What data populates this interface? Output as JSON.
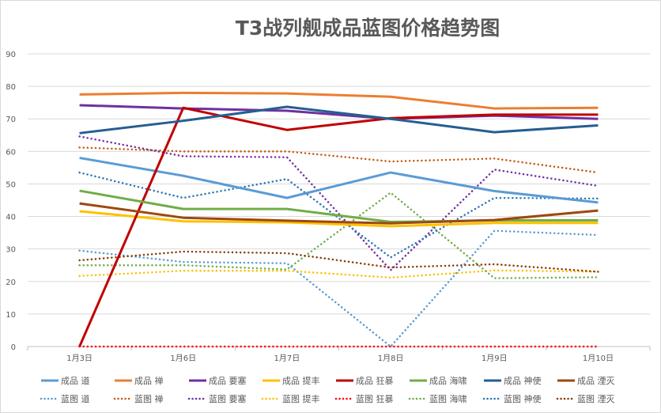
{
  "chart_data": {
    "type": "line",
    "title": "T3战列舰成品蓝图价格趋势图",
    "xlabel": "",
    "ylabel": "",
    "categories": [
      "1月3日",
      "1月6日",
      "1月7日",
      "1月8日",
      "1月9日",
      "1月10日"
    ],
    "ylim": [
      0,
      90
    ],
    "yticks": [
      "0",
      "10",
      "20",
      "30",
      "40",
      "50",
      "60",
      "70",
      "80",
      "90"
    ],
    "grid": true,
    "legend_position": "bottom",
    "series": [
      {
        "name": "成品 道",
        "color": "#5b9bd5",
        "dash": "solid",
        "values": [
          58,
          52.5,
          45.7,
          53.5,
          47.8,
          44.3
        ]
      },
      {
        "name": "成品 禅",
        "color": "#ed7d31",
        "dash": "solid",
        "values": [
          77.5,
          78,
          77.8,
          76.8,
          73.2,
          73.4
        ]
      },
      {
        "name": "成品 要塞",
        "color": "#7030a0",
        "dash": "solid",
        "values": [
          74.2,
          73.2,
          72.5,
          70,
          71,
          70
        ]
      },
      {
        "name": "成品 提丰",
        "color": "#ffc000",
        "dash": "solid",
        "values": [
          41.6,
          38.5,
          38.2,
          37,
          38,
          38
        ]
      },
      {
        "name": "成品 狂暴",
        "color": "#c00000",
        "dash": "solid",
        "values": [
          0,
          73.4,
          66.6,
          70.2,
          71.3,
          71.3
        ]
      },
      {
        "name": "成品 海啸",
        "color": "#70ad47",
        "dash": "solid",
        "values": [
          47.9,
          42.3,
          42.3,
          38.3,
          38.8,
          38.8
        ]
      },
      {
        "name": "成品 神使",
        "color": "#255e91",
        "dash": "solid",
        "values": [
          65.6,
          69.4,
          73.7,
          70,
          65.9,
          68
        ]
      },
      {
        "name": "成品 湮灭",
        "color": "#9e480e",
        "dash": "solid",
        "values": [
          44,
          39.6,
          38.7,
          37.9,
          38.9,
          41.8
        ]
      },
      {
        "name": "蓝图 道",
        "color": "#5b9bd5",
        "dash": "dot",
        "values": [
          29.5,
          26,
          25.6,
          0,
          35.6,
          34.3
        ]
      },
      {
        "name": "蓝图 禅",
        "color": "#c55a11",
        "dash": "dot",
        "values": [
          61.2,
          60,
          60,
          56.9,
          57.8,
          53.5
        ]
      },
      {
        "name": "蓝图 要塞",
        "color": "#7030a0",
        "dash": "dot",
        "values": [
          64.6,
          58.5,
          58.2,
          23.5,
          54.4,
          49.4
        ]
      },
      {
        "name": "蓝图 提丰",
        "color": "#ffc000",
        "dash": "dot",
        "values": [
          21.7,
          23.3,
          23.3,
          21.2,
          23.4,
          23
        ]
      },
      {
        "name": "蓝图 狂暴",
        "color": "#ff0000",
        "dash": "dot",
        "values": [
          0,
          0,
          0,
          0,
          0,
          0
        ]
      },
      {
        "name": "蓝图 海啸",
        "color": "#70ad47",
        "dash": "dot",
        "values": [
          25,
          25,
          23.7,
          47.3,
          21,
          21.3
        ]
      },
      {
        "name": "蓝图 神使",
        "color": "#2e75b6",
        "dash": "dot",
        "values": [
          53.5,
          45.7,
          51.5,
          27.4,
          45.7,
          45.5
        ]
      },
      {
        "name": "蓝图 湮灭",
        "color": "#843c0c",
        "dash": "dot",
        "values": [
          26.5,
          29.2,
          28.7,
          24.3,
          25.3,
          23
        ]
      }
    ]
  }
}
